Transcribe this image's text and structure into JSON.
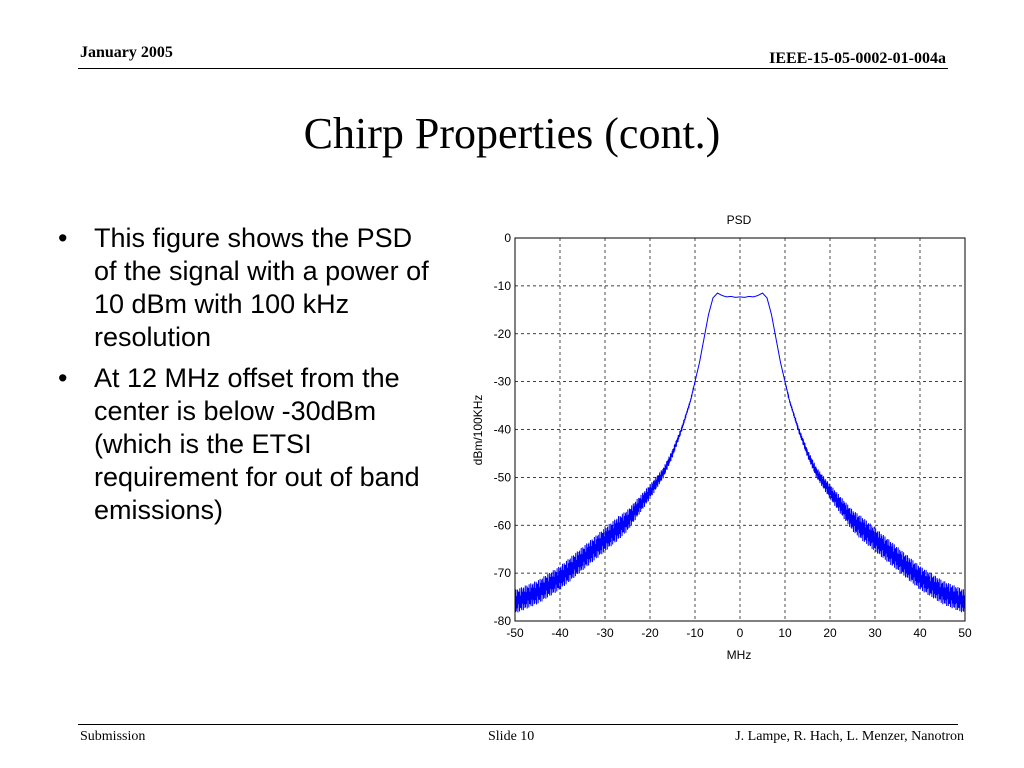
{
  "header": {
    "date": "January 2005",
    "doc_id": "IEEE-15-05-0002-01-004a"
  },
  "slide": {
    "title": "Chirp Properties (cont.)",
    "bullets": [
      "This figure shows the PSD of the signal with a power of 10 dBm with 100 kHz resolution",
      "At 12 MHz offset from the center is below -30dBm (which is the ETSI requirement for out of band emissions)"
    ]
  },
  "footer": {
    "left": "Submission",
    "center": "Slide 10",
    "right": "J. Lampe, R. Hach, L. Menzer, Nanotron"
  },
  "chart_data": {
    "type": "line",
    "title": "PSD",
    "xlabel": "MHz",
    "ylabel": "dBm/100KHz",
    "xlim": [
      -50,
      50
    ],
    "ylim": [
      -80,
      0
    ],
    "xticks": [
      -50,
      -40,
      -30,
      -20,
      -10,
      0,
      10,
      20,
      30,
      40,
      50
    ],
    "yticks": [
      0,
      -10,
      -20,
      -30,
      -40,
      -50,
      -60,
      -70,
      -80
    ],
    "grid": true,
    "line_color": "#0000ff",
    "series": [
      {
        "x": [
          -50,
          -45,
          -40,
          -35,
          -30,
          -25,
          -20,
          -17,
          -15,
          -13,
          -12,
          -11,
          -10,
          -9,
          -8,
          -7,
          -6,
          -5,
          -4,
          -3,
          -2,
          -1,
          0,
          1,
          2,
          3,
          4,
          5,
          6,
          7,
          8,
          9,
          10,
          11,
          12,
          13,
          15,
          17,
          20,
          25,
          30,
          35,
          40,
          45,
          50
        ],
        "y": [
          -76,
          -74,
          -71,
          -67,
          -63,
          -59,
          -53,
          -49,
          -45,
          -40,
          -37,
          -34,
          -30,
          -26,
          -21,
          -16,
          -12.5,
          -11.5,
          -12.0,
          -12.3,
          -12.2,
          -12.4,
          -12.3,
          -12.4,
          -12.2,
          -12.3,
          -12.0,
          -11.5,
          -12.5,
          -16,
          -21,
          -26,
          -30,
          -34,
          -37,
          -40,
          -45,
          -49,
          -53,
          -59,
          -63,
          -67,
          -71,
          -74,
          -76
        ],
        "ripple_db": 2.5
      }
    ]
  }
}
